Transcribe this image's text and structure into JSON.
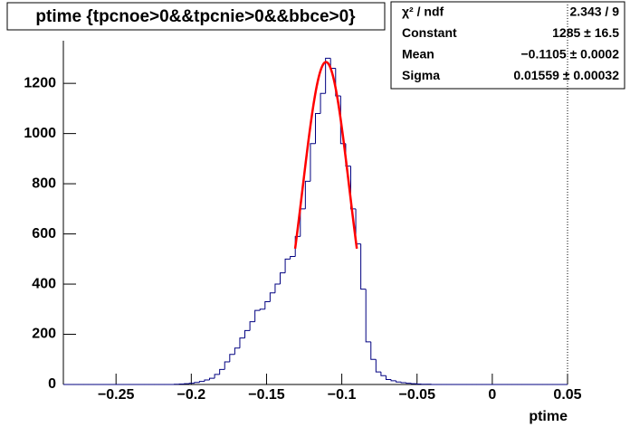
{
  "chart_data": {
    "type": "histogram",
    "title": "ptime {tpcnoe>0&&tpcnie>0&&bbce>0}",
    "x_label": "ptime",
    "color": "#000080",
    "bins": [
      -0.285,
      -0.28165,
      -0.2783,
      -0.27495,
      -0.2716,
      -0.26825,
      -0.2649,
      -0.26155,
      -0.2582,
      -0.25485,
      -0.2515,
      -0.24815,
      -0.2448,
      -0.24145,
      -0.2381,
      -0.23475,
      -0.2314,
      -0.22805,
      -0.2247,
      -0.22135,
      -0.218,
      -0.21465,
      -0.2113,
      -0.20795,
      -0.2046,
      -0.20125,
      -0.1979,
      -0.19455,
      -0.1912,
      -0.18785,
      -0.1845,
      -0.18115,
      -0.1778,
      -0.17445,
      -0.1711,
      -0.16775,
      -0.1644,
      -0.16105,
      -0.1577,
      -0.15435,
      -0.151,
      -0.14765,
      -0.1443,
      -0.14095,
      -0.1376,
      -0.13425,
      -0.1309,
      -0.12755,
      -0.1242,
      -0.12085,
      -0.1175,
      -0.11415,
      -0.1108,
      -0.10745,
      -0.1041,
      -0.10075,
      -0.0974,
      -0.09405,
      -0.0907,
      -0.08735,
      -0.084,
      -0.08065,
      -0.0773,
      -0.07395,
      -0.0706,
      -0.06725,
      -0.0639,
      -0.06055,
      -0.0572,
      -0.05385,
      -0.0505,
      -0.04715,
      -0.0438,
      -0.04045,
      -0.0371,
      -0.03375,
      -0.0304,
      -0.02705,
      -0.0237,
      -0.02035,
      -0.017,
      -0.01365,
      -0.0103,
      -0.00695,
      -0.0036,
      -0.00025,
      0.0031,
      0.00645,
      0.0098,
      0.01315,
      0.0165,
      0.01985,
      0.0232,
      0.02655,
      0.0299,
      0.03325,
      0.0366,
      0.03995,
      0.0433,
      0.04665,
      0.05
    ],
    "values": [
      0,
      0,
      0,
      0,
      0,
      0,
      0,
      0,
      0,
      0,
      0,
      0,
      0,
      0,
      0,
      0,
      0,
      0,
      0,
      0,
      0,
      0,
      1,
      2,
      3,
      5,
      8,
      12,
      18,
      25,
      40,
      60,
      90,
      120,
      145,
      185,
      215,
      250,
      295,
      300,
      330,
      365,
      400,
      445,
      500,
      510,
      590,
      700,
      810,
      960,
      1080,
      1160,
      1300,
      1260,
      1150,
      960,
      870,
      700,
      560,
      380,
      170,
      100,
      50,
      35,
      20,
      15,
      10,
      7,
      5,
      3,
      2,
      1,
      1,
      0,
      0,
      0,
      0,
      0,
      0,
      0,
      0,
      0,
      0,
      0,
      0,
      0,
      0,
      0,
      0,
      0,
      0,
      0,
      0,
      0,
      0,
      0,
      0,
      0,
      0,
      0
    ],
    "xlim": [
      -0.285,
      0.05
    ],
    "ylim": [
      0,
      1370
    ],
    "xticks": [
      {
        "value": -0.25,
        "label": "−0.25"
      },
      {
        "value": -0.2,
        "label": "−0.2"
      },
      {
        "value": -0.15,
        "label": "−0.15"
      },
      {
        "value": -0.1,
        "label": "−0.1"
      },
      {
        "value": -0.05,
        "label": "−0.05"
      },
      0,
      0.05
    ],
    "yticks": [
      0,
      200,
      400,
      600,
      800,
      1000,
      1200
    ],
    "fit": {
      "color": "#ff0000",
      "xlim": [
        -0.131,
        -0.09
      ]
    },
    "stats": [
      {
        "label": "χ² / ndf",
        "value_label": "2.343 / 9"
      },
      {
        "label": "Constant",
        "value": 1285,
        "value_label": "1285 ± 16.5"
      },
      {
        "label": "Mean",
        "value": -0.1105,
        "value_label": "−0.1105 ± 0.0002"
      },
      {
        "label": "Sigma",
        "value": 0.01559,
        "value_label": "0.01559 ± 0.00032"
      }
    ]
  }
}
